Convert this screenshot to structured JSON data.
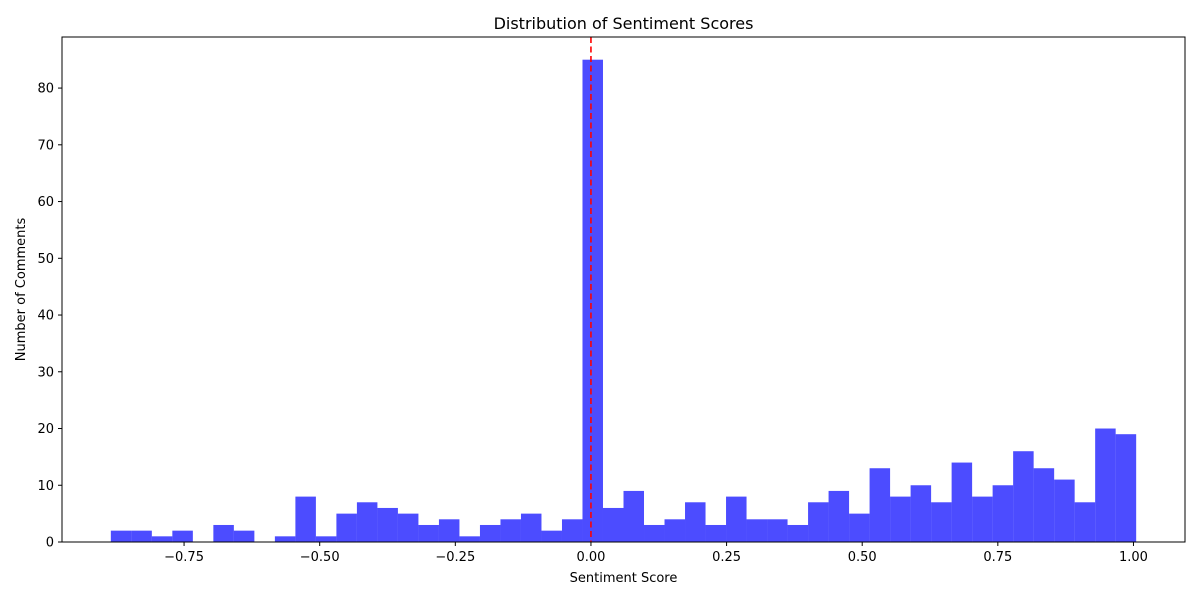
{
  "chart_data": {
    "type": "bar",
    "title": "Distribution of Sentiment Scores",
    "xlabel": "Sentiment Score",
    "ylabel": "Number of Comments",
    "xlim": [
      -0.975,
      1.095
    ],
    "ylim": [
      0,
      89
    ],
    "grid": false,
    "bins_start": -0.885,
    "bin_width": 0.0378,
    "values": [
      2,
      2,
      1,
      2,
      0,
      3,
      2,
      0,
      1,
      8,
      1,
      5,
      7,
      6,
      5,
      3,
      4,
      1,
      3,
      4,
      5,
      2,
      4,
      85,
      6,
      9,
      3,
      4,
      7,
      3,
      8,
      4,
      4,
      3,
      7,
      9,
      5,
      13,
      8,
      10,
      7,
      14,
      8,
      10,
      16,
      13,
      11,
      7,
      20,
      19
    ],
    "bar_color": "#0000ff",
    "bar_opacity": 0.7,
    "reference_line": {
      "x": 0,
      "color": "#ff0000",
      "style": "dashed"
    },
    "x_ticks": [
      -0.75,
      -0.5,
      -0.25,
      0.0,
      0.25,
      0.5,
      0.75,
      1.0
    ],
    "x_tick_labels": [
      "−0.75",
      "−0.50",
      "−0.25",
      "0.00",
      "0.25",
      "0.50",
      "0.75",
      "1.00"
    ],
    "y_ticks": [
      0,
      10,
      20,
      30,
      40,
      50,
      60,
      70,
      80
    ],
    "y_tick_labels": [
      "0",
      "10",
      "20",
      "30",
      "40",
      "50",
      "60",
      "70",
      "80"
    ]
  }
}
